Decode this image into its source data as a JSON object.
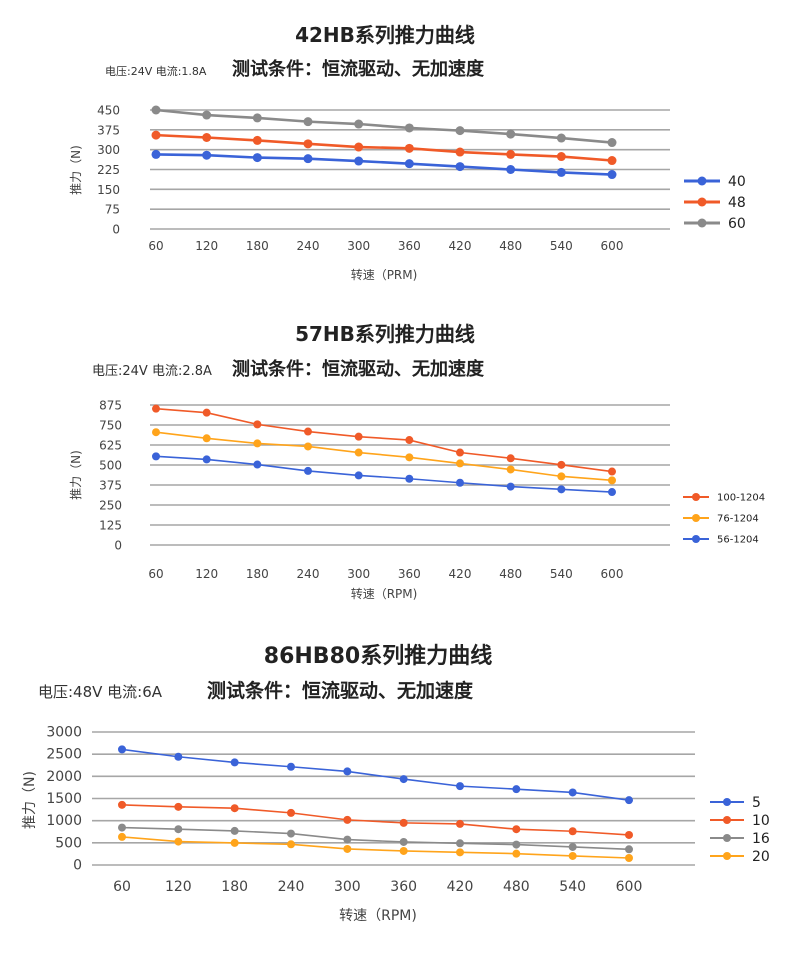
{
  "chart_data": [
    {
      "type": "line",
      "title": "42HB系列推力曲线",
      "condition": "电压:24V 电流:1.8A",
      "subtitle": "测试条件：恒流驱动、无加速度",
      "xlabel": "转速（PRM)",
      "ylabel": "推力（N)",
      "categories": [
        "60",
        "120",
        "180",
        "240",
        "300",
        "360",
        "420",
        "480",
        "540",
        "600"
      ],
      "yticks": [
        0,
        75,
        150,
        225,
        300,
        375,
        450
      ],
      "ylim": [
        0,
        450
      ],
      "grid": true,
      "legend_placement": "right",
      "series": [
        {
          "name": "40",
          "color": "#3a63d8",
          "values": [
            282,
            279,
            270,
            266,
            257,
            247,
            236,
            225,
            214,
            206
          ]
        },
        {
          "name": "48",
          "color": "#f05a28",
          "values": [
            355,
            346,
            335,
            322,
            310,
            305,
            291,
            282,
            274,
            259
          ]
        },
        {
          "name": "60",
          "color": "#8a8a8a",
          "values": [
            450,
            431,
            420,
            406,
            397,
            382,
            372,
            359,
            344,
            327
          ]
        }
      ]
    },
    {
      "type": "line",
      "title": "57HB系列推力曲线",
      "condition": "电压:24V 电流:2.8A",
      "subtitle": "测试条件：恒流驱动、无加速度",
      "xlabel": "转速（RPM)",
      "ylabel": "推力（N)",
      "categories": [
        "60",
        "120",
        "180",
        "240",
        "300",
        "360",
        "420",
        "480",
        "540",
        "600"
      ],
      "yticks": [
        0,
        125,
        250,
        375,
        500,
        625,
        750,
        875
      ],
      "ylim": [
        0,
        875
      ],
      "grid": true,
      "legend_placement": "right",
      "series": [
        {
          "name": "100-1204",
          "color": "#f05a28",
          "values": [
            852,
            827,
            754,
            709,
            677,
            656,
            578,
            542,
            501,
            459
          ]
        },
        {
          "name": "76-1204",
          "color": "#ffa41b",
          "values": [
            705,
            667,
            635,
            616,
            578,
            548,
            510,
            472,
            429,
            404
          ]
        },
        {
          "name": "56-1204",
          "color": "#3a63d8",
          "values": [
            554,
            535,
            503,
            463,
            435,
            414,
            389,
            365,
            348,
            331
          ]
        }
      ]
    },
    {
      "type": "line",
      "title": "86HB80系列推力曲线",
      "condition": "电压:48V  电流:6A",
      "subtitle": "测试条件：恒流驱动、无加速度",
      "xlabel": "转速（RPM)",
      "ylabel": "推力（N)",
      "categories": [
        "60",
        "120",
        "180",
        "240",
        "300",
        "360",
        "420",
        "480",
        "540",
        "600"
      ],
      "yticks": [
        0,
        500,
        1000,
        1500,
        2000,
        2500,
        3000
      ],
      "ylim": [
        0,
        3000
      ],
      "grid": true,
      "legend_placement": "right",
      "series": [
        {
          "name": "5",
          "color": "#3a63d8",
          "values": [
            2608,
            2442,
            2314,
            2216,
            2111,
            1938,
            1779,
            1711,
            1636,
            1462
          ]
        },
        {
          "name": "10",
          "color": "#f05a28",
          "values": [
            1357,
            1312,
            1281,
            1176,
            1018,
            950,
            927,
            807,
            761,
            678
          ]
        },
        {
          "name": "16",
          "color": "#8a8a8a",
          "values": [
            844,
            807,
            769,
            709,
            573,
            520,
            490,
            460,
            407,
            354
          ]
        },
        {
          "name": "20",
          "color": "#ffa41b",
          "values": [
            633,
            528,
            498,
            467,
            362,
            317,
            286,
            256,
            204,
            158
          ]
        }
      ]
    }
  ]
}
